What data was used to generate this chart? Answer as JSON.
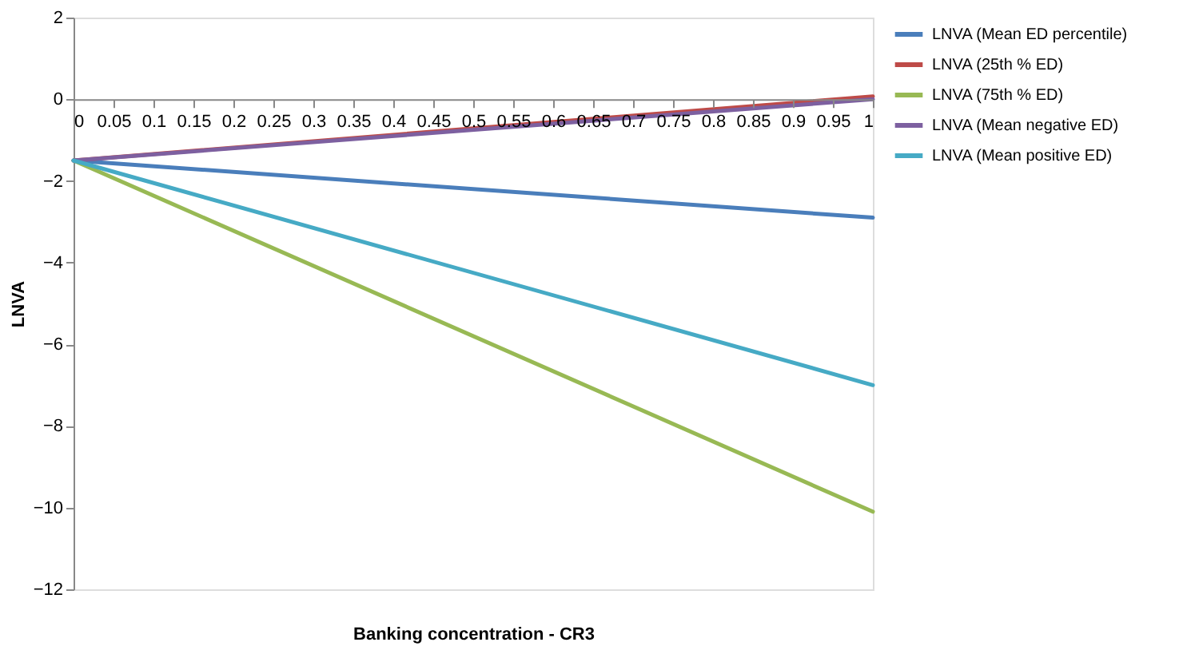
{
  "chart_data": {
    "type": "line",
    "xlabel": "Banking concentration - CR3",
    "ylabel": "LNVA",
    "x": [
      0,
      1
    ],
    "series": [
      {
        "name": "LNVA (Mean ED percentile)",
        "color": "#4a7ebb",
        "values": [
          -1.5,
          -2.9
        ]
      },
      {
        "name": "LNVA (25th % ED)",
        "color": "#be4b48",
        "values": [
          -1.5,
          0.07
        ]
      },
      {
        "name": "LNVA (75th % ED)",
        "color": "#98b954",
        "values": [
          -1.5,
          -10.1
        ]
      },
      {
        "name": "LNVA (Mean negative ED)",
        "color": "#7d60a0",
        "values": [
          -1.5,
          0.0
        ]
      },
      {
        "name": "LNVA (Mean positive ED)",
        "color": "#46aac5",
        "values": [
          -1.5,
          -7.0
        ]
      }
    ],
    "xlim": [
      0,
      1
    ],
    "xticks": [
      0,
      0.05,
      0.1,
      0.15,
      0.2,
      0.25,
      0.3,
      0.35,
      0.4,
      0.45,
      0.5,
      0.55,
      0.6,
      0.65,
      0.7,
      0.75,
      0.8,
      0.85,
      0.9,
      0.95,
      1
    ],
    "ylim": [
      -12,
      2
    ],
    "yticks": [
      -12,
      -10,
      -8,
      -6,
      -4,
      -2,
      0,
      2
    ],
    "grid": false,
    "legend": "right",
    "marker": "none",
    "line_style": "solid"
  }
}
